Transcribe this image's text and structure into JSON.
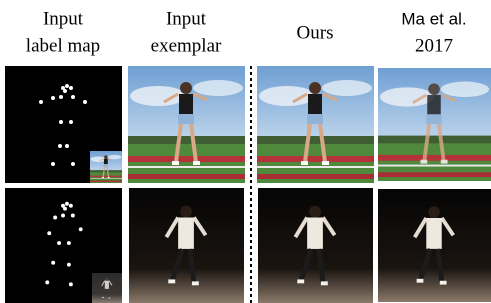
{
  "header": {
    "columns": [
      {
        "lines": [
          "Input",
          "label map"
        ]
      },
      {
        "lines": [
          "Input",
          "exemplar"
        ]
      },
      {
        "lines": [
          "Ours"
        ]
      },
      {
        "lines": [
          "Ma et al.",
          "2017"
        ]
      }
    ]
  }
}
